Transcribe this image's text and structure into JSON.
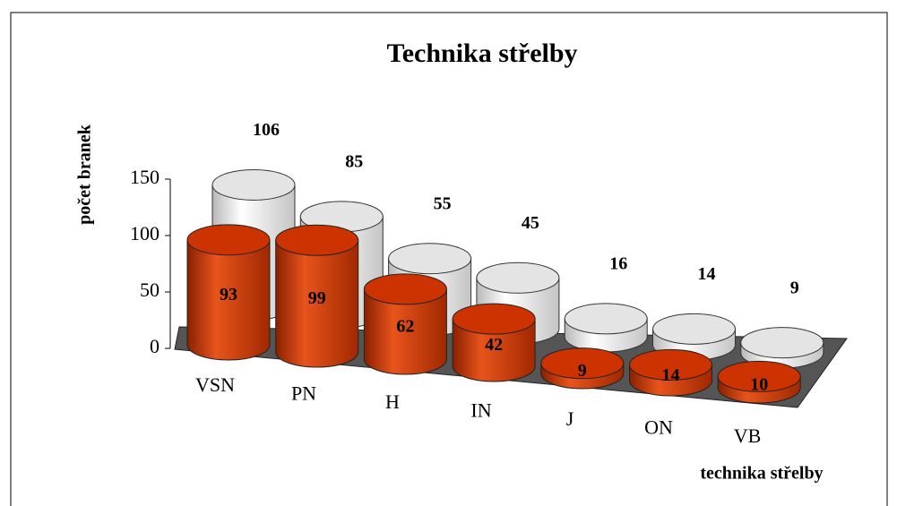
{
  "chart_data": {
    "type": "cylinder3d",
    "title": "Technika střelby",
    "y_label": "počet branek",
    "x_label": "technika střelby",
    "categories": [
      "VSN",
      "PN",
      "H",
      "IN",
      "J",
      "ON",
      "VB"
    ],
    "series": [
      {
        "color": "#cc3300",
        "values": [
          93,
          99,
          62,
          42,
          9,
          14,
          10
        ]
      },
      {
        "color": "#e4e4e4",
        "values": [
          106,
          85,
          55,
          45,
          16,
          14,
          9
        ]
      }
    ],
    "ylim": [
      0,
      150
    ],
    "yticks": [
      0,
      50,
      100,
      150
    ]
  }
}
